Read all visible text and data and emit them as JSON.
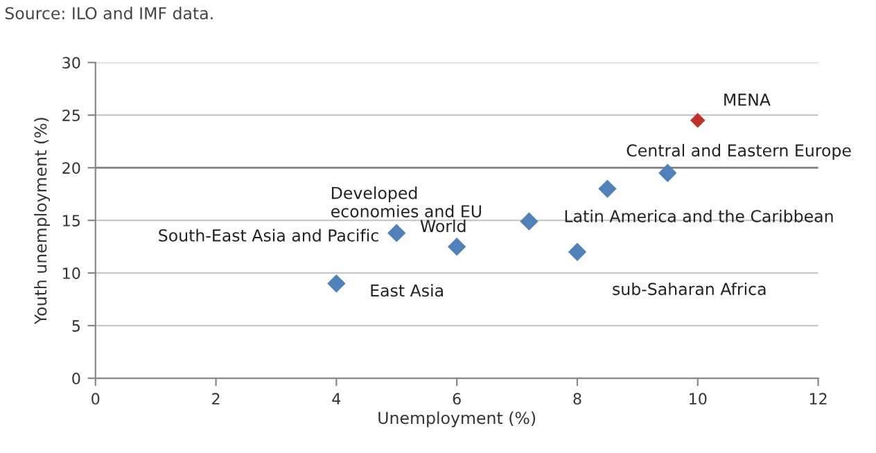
{
  "chart_data": {
    "type": "scatter",
    "xlabel": "Unemployment (%)",
    "ylabel": "Youth unemployment (%)",
    "x": [
      4,
      5,
      6,
      7.2,
      8,
      8.5,
      9.5,
      10
    ],
    "values": [
      9,
      13.8,
      12.5,
      14.9,
      12,
      18,
      19.5,
      24.5
    ],
    "colors": [
      "#4f81bd",
      "#4f81bd",
      "#4f81bd",
      "#4f81bd",
      "#4f81bd",
      "#4f81bd",
      "#4f81bd",
      "#c0302b"
    ],
    "marker": "diamond",
    "xlim": [
      0,
      12
    ],
    "xticks": [
      0,
      2,
      4,
      6,
      8,
      10,
      12
    ],
    "ylim": [
      0,
      30
    ],
    "yticks": [
      0,
      5,
      10,
      15,
      20,
      25,
      30
    ],
    "grid": "y",
    "ref_lines": [
      {
        "axis": "y",
        "value": 20,
        "color": "#808080"
      }
    ],
    "annotations": [
      "Source: ILO and IMF data.",
      "East Asia",
      "Developed\neconomies and EU",
      {
        "text": "South-East Asia and Pacific",
        "x": 5,
        "y": 13.8
      },
      {
        "text": "World",
        "x": 6,
        "y": 12.5
      },
      {
        "text": "Latin America and the Caribbean",
        "x": 7.2,
        "y": 14.9
      },
      {
        "text": "sub-Saharan Africa",
        "x": 8,
        "y": 12
      },
      {
        "text": "Central and Eastern Europe",
        "x": 9.5,
        "y": 19.5
      },
      {
        "text": "MENA",
        "x": 10,
        "y": 24.5
      }
    ]
  }
}
